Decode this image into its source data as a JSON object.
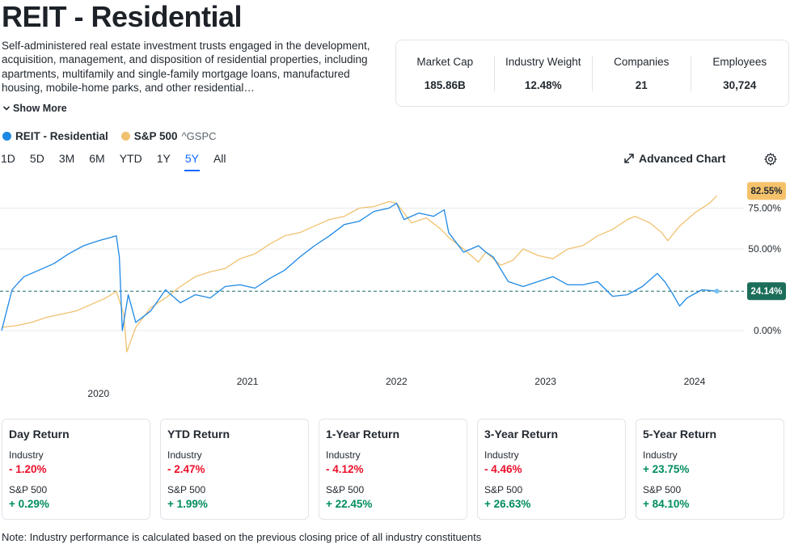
{
  "header": {
    "title": "REIT - Residential",
    "description": "Self-administered real estate investment trusts engaged in the development, acquisition, management, and disposition of residential properties, including apartments, multifamily and single-family mortgage loans, manufactured housing, mobile-home parks, and other residential…",
    "show_more": "Show More"
  },
  "stats": [
    {
      "label": "Market Cap",
      "value": "185.86B"
    },
    {
      "label": "Industry Weight",
      "value": "12.48%"
    },
    {
      "label": "Companies",
      "value": "21"
    },
    {
      "label": "Employees",
      "value": "30,724"
    }
  ],
  "legend": {
    "series1": {
      "name": "REIT - Residential",
      "color": "#1e88e5"
    },
    "series2": {
      "name": "S&P 500",
      "symbol": "^GSPC",
      "color": "#f0c270"
    }
  },
  "ranges": [
    "1D",
    "5D",
    "3M",
    "6M",
    "YTD",
    "1Y",
    "5Y",
    "All"
  ],
  "active_range": "5Y",
  "toolbar": {
    "advanced_chart": "Advanced Chart"
  },
  "chart_data": {
    "type": "line",
    "title": "",
    "x_start": 2019.35,
    "x_end": 2024.25,
    "x_ticks": [
      {
        "value": 2020.0,
        "label": "2020"
      },
      {
        "value": 2021.0,
        "label": "2021"
      },
      {
        "value": 2022.0,
        "label": "2022"
      },
      {
        "value": 2023.0,
        "label": "2023"
      },
      {
        "value": 2024.0,
        "label": "2024"
      }
    ],
    "y_ticks": [
      {
        "value": 75,
        "label": "75.00%"
      },
      {
        "value": 50,
        "label": "50.00%"
      },
      {
        "value": 0,
        "label": "0.00%"
      }
    ],
    "ylim": [
      -25,
      100
    ],
    "series": [
      {
        "name": "REIT - Residential",
        "color": "#1e88e5",
        "last_label": "24.14%",
        "last_value": 24.14,
        "x": [
          2019.35,
          2019.42,
          2019.5,
          2019.6,
          2019.7,
          2019.8,
          2019.9,
          2020.0,
          2020.08,
          2020.12,
          2020.14,
          2020.16,
          2020.2,
          2020.25,
          2020.35,
          2020.45,
          2020.55,
          2020.65,
          2020.75,
          2020.85,
          2020.95,
          2021.05,
          2021.15,
          2021.25,
          2021.35,
          2021.45,
          2021.55,
          2021.65,
          2021.75,
          2021.85,
          2021.95,
          2022.0,
          2022.05,
          2022.15,
          2022.25,
          2022.32,
          2022.35,
          2022.45,
          2022.55,
          2022.6,
          2022.65,
          2022.75,
          2022.85,
          2022.95,
          2023.05,
          2023.15,
          2023.25,
          2023.35,
          2023.45,
          2023.55,
          2023.65,
          2023.75,
          2023.8,
          2023.85,
          2023.9,
          2023.95,
          2024.05,
          2024.15
        ],
        "y": [
          0,
          25,
          33,
          37,
          41,
          47,
          52,
          55,
          57,
          58,
          45,
          0,
          22,
          5,
          12,
          25,
          17,
          22,
          20,
          27,
          28,
          26,
          32,
          37,
          45,
          52,
          58,
          65,
          67,
          73,
          75,
          78,
          68,
          72,
          70,
          74,
          60,
          48,
          52,
          48,
          45,
          30,
          27,
          30,
          33,
          28,
          28,
          30,
          21,
          22,
          27,
          35,
          30,
          23,
          15,
          20,
          25,
          24.14
        ]
      },
      {
        "name": "S&P 500",
        "color": "#f0c270",
        "symbol": "^GSPC",
        "last_label": "82.55%",
        "last_value": 82.55,
        "x": [
          2019.35,
          2019.45,
          2019.55,
          2019.65,
          2019.75,
          2019.85,
          2019.95,
          2020.05,
          2020.12,
          2020.17,
          2020.19,
          2020.25,
          2020.35,
          2020.45,
          2020.55,
          2020.65,
          2020.75,
          2020.85,
          2020.95,
          2021.05,
          2021.15,
          2021.25,
          2021.35,
          2021.45,
          2021.55,
          2021.65,
          2021.75,
          2021.85,
          2021.95,
          2022.0,
          2022.1,
          2022.2,
          2022.3,
          2022.35,
          2022.45,
          2022.55,
          2022.6,
          2022.7,
          2022.78,
          2022.85,
          2022.95,
          2023.05,
          2023.15,
          2023.25,
          2023.35,
          2023.45,
          2023.55,
          2023.6,
          2023.7,
          2023.78,
          2023.82,
          2023.9,
          2024.0,
          2024.1,
          2024.15
        ],
        "y": [
          2,
          3,
          5,
          8,
          10,
          12,
          16,
          20,
          24,
          10,
          -13,
          2,
          14,
          20,
          27,
          33,
          36,
          38,
          44,
          47,
          53,
          58,
          60,
          64,
          68,
          70,
          75,
          76,
          79,
          78,
          66,
          69,
          62,
          57,
          50,
          42,
          48,
          40,
          43,
          50,
          46,
          44,
          50,
          52,
          58,
          62,
          68,
          70,
          66,
          60,
          55,
          64,
          72,
          78,
          82.55
        ]
      }
    ],
    "baseline_label_value": 24.14
  },
  "returns": [
    {
      "title": "Day Return",
      "industry_label": "Industry",
      "industry_value": "- 1.20%",
      "industry_positive": false,
      "sp_label": "S&P 500",
      "sp_value": "+ 0.29%",
      "sp_positive": true
    },
    {
      "title": "YTD Return",
      "industry_label": "Industry",
      "industry_value": "- 2.47%",
      "industry_positive": false,
      "sp_label": "S&P 500",
      "sp_value": "+ 1.99%",
      "sp_positive": true
    },
    {
      "title": "1-Year Return",
      "industry_label": "Industry",
      "industry_value": "- 4.12%",
      "industry_positive": false,
      "sp_label": "S&P 500",
      "sp_value": "+ 22.45%",
      "sp_positive": true
    },
    {
      "title": "3-Year Return",
      "industry_label": "Industry",
      "industry_value": "- 4.46%",
      "industry_positive": false,
      "sp_label": "S&P 500",
      "sp_value": "+ 26.63%",
      "sp_positive": true
    },
    {
      "title": "5-Year Return",
      "industry_label": "Industry",
      "industry_value": "+ 23.75%",
      "industry_positive": true,
      "sp_label": "S&P 500",
      "sp_value": "+ 84.10%",
      "sp_positive": true
    }
  ],
  "note": "Note: Industry performance is calculated based on the previous closing price of all industry constituents"
}
